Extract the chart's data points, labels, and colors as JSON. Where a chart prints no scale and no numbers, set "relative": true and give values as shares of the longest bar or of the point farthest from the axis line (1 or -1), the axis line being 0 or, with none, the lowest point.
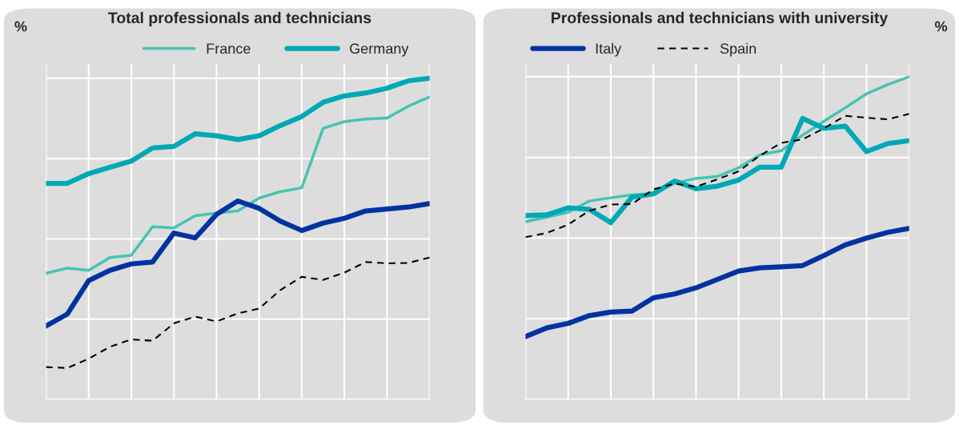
{
  "chart_data": [
    {
      "type": "line",
      "title": "Total professionals and technicians",
      "ylabel": "%",
      "relative": true,
      "grid": true,
      "legend": "top",
      "categories": [
        null,
        null,
        null,
        null,
        null,
        null,
        null,
        null,
        null,
        null,
        null,
        null,
        null,
        null,
        null,
        null,
        null,
        null,
        null
      ],
      "series": [
        {
          "name": "France",
          "color": "#45c4b0",
          "line_style": "solid",
          "values": [
            0.393,
            0.409,
            0.402,
            0.442,
            0.449,
            0.538,
            0.534,
            0.572,
            0.58,
            0.587,
            0.627,
            0.647,
            0.659,
            0.844,
            0.865,
            0.873,
            0.876,
            0.913,
            0.942
          ]
        },
        {
          "name": "Germany",
          "color": "#00a9b5",
          "line_style": "solid",
          "values": [
            0.673,
            0.673,
            0.703,
            0.723,
            0.742,
            0.783,
            0.788,
            0.827,
            0.821,
            0.809,
            0.821,
            0.853,
            0.881,
            0.925,
            0.945,
            0.954,
            0.969,
            0.992,
            1
          ]
        },
        {
          "color": "#0033a0",
          "line_style": "solid",
          "values": [
            0.229,
            0.266,
            0.37,
            0.402,
            0.422,
            0.428,
            0.518,
            0.503,
            0.576,
            0.618,
            0.595,
            0.555,
            0.526,
            0.549,
            0.564,
            0.587,
            0.593,
            0.599,
            0.61
          ]
        },
        {
          "color": "#000000",
          "line_style": "dashed",
          "values": [
            0.101,
            0.098,
            0.127,
            0.164,
            0.187,
            0.183,
            0.237,
            0.258,
            0.243,
            0.268,
            0.283,
            0.341,
            0.382,
            0.372,
            0.395,
            0.428,
            0.424,
            0.425,
            0.442
          ]
        }
      ]
    },
    {
      "type": "line",
      "title": "Professionals and technicians with university",
      "y2label": "%",
      "relative": true,
      "grid": true,
      "legend": "top left",
      "categories": [
        null,
        null,
        null,
        null,
        null,
        null,
        null,
        null,
        null,
        null,
        null,
        null,
        null,
        null,
        null,
        null,
        null,
        null,
        null
      ],
      "series": [
        {
          "color": "#45c4b0",
          "line_style": "solid",
          "values": [
            0.551,
            0.565,
            0.58,
            0.615,
            0.625,
            0.634,
            0.637,
            0.67,
            0.685,
            0.691,
            0.718,
            0.758,
            0.771,
            0.819,
            0.862,
            0.904,
            0.947,
            0.976,
            1
          ]
        },
        {
          "color": "#00a9b5",
          "line_style": "solid",
          "values": [
            0.57,
            0.572,
            0.594,
            0.589,
            0.548,
            0.627,
            0.637,
            0.677,
            0.653,
            0.661,
            0.68,
            0.72,
            0.72,
            0.871,
            0.84,
            0.847,
            0.768,
            0.793,
            0.802
          ]
        },
        {
          "name": "Italy",
          "color": "#0033a0",
          "line_style": "solid",
          "values": [
            0.195,
            0.222,
            0.236,
            0.26,
            0.271,
            0.274,
            0.315,
            0.327,
            0.346,
            0.372,
            0.398,
            0.408,
            0.411,
            0.415,
            0.446,
            0.479,
            0.5,
            0.518,
            0.53
          ]
        },
        {
          "name": "Spain",
          "color": "#000000",
          "line_style": "dashed",
          "values": [
            0.503,
            0.516,
            0.542,
            0.585,
            0.604,
            0.606,
            0.651,
            0.669,
            0.659,
            0.682,
            0.707,
            0.756,
            0.795,
            0.806,
            0.84,
            0.879,
            0.873,
            0.868,
            0.885
          ]
        }
      ]
    }
  ]
}
